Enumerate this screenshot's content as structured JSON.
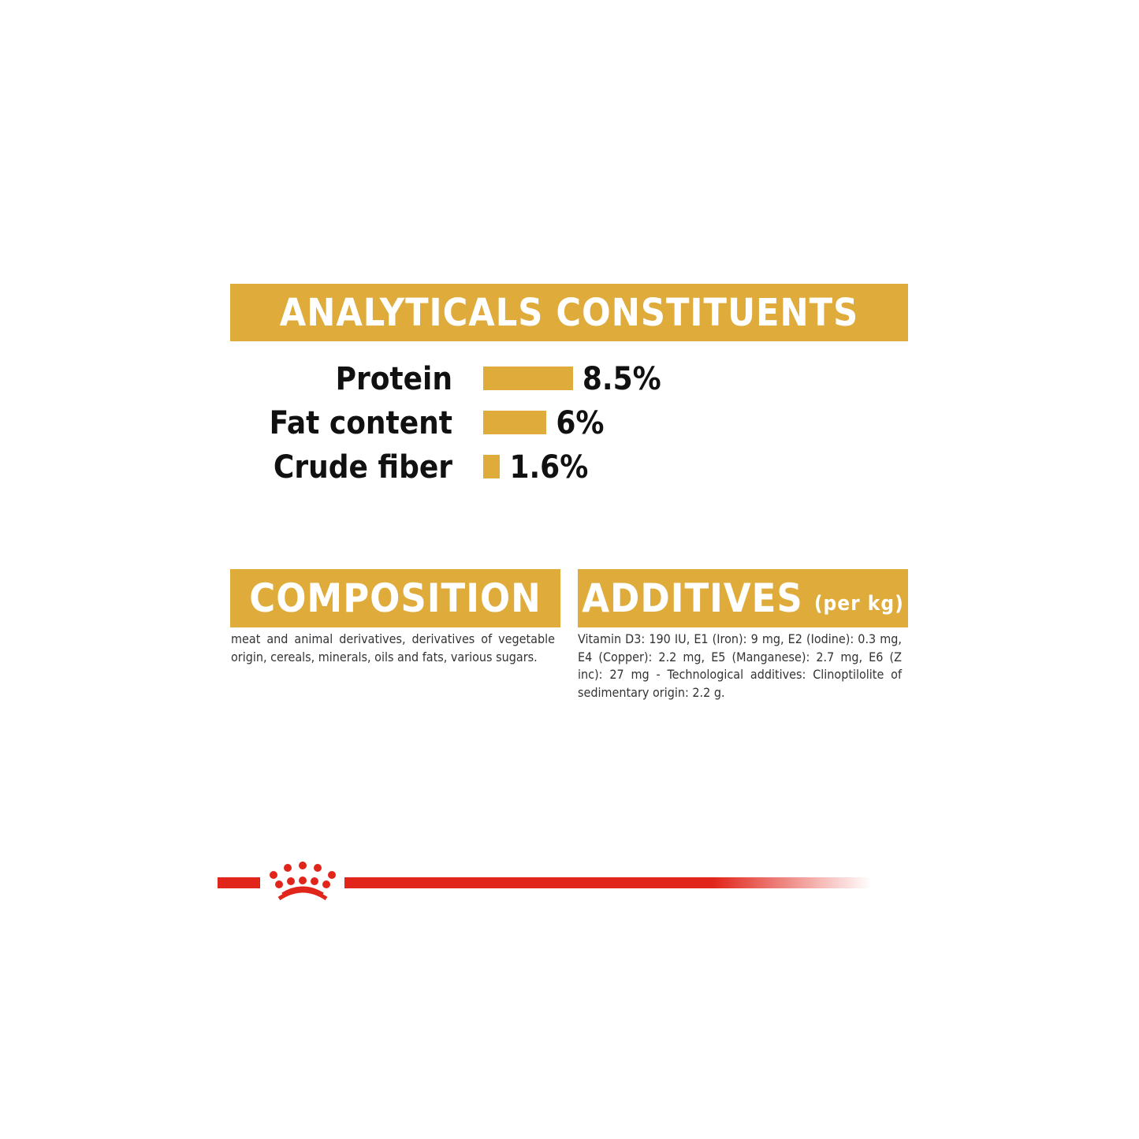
{
  "analyticals": {
    "title": "ANALYTICALS CONSTITUENTS",
    "items": [
      {
        "label": "Protein",
        "value": "8.5%",
        "percent": 8.5
      },
      {
        "label": "Fat content",
        "value": "6%",
        "percent": 6
      },
      {
        "label": "Crude fiber",
        "value": "1.6%",
        "percent": 1.6
      }
    ]
  },
  "composition": {
    "title": "COMPOSITION",
    "text": "meat and animal derivatives, derivatives of vegetable origin, cereals, minerals, oils and fats, various sugars."
  },
  "additives": {
    "title": "ADDITIVES",
    "subtitle": "(per kg)",
    "text": "Vitamin D3: 190 IU, E1 (Iron): 9 mg, E2 (Iodine): 0.3 mg, E4 (Copper): 2.2 mg, E5 (Manganese): 2.7 mg, E6 (Z inc): 27 mg - Technological additives: Clinoptilolite of sedimentary origin: 2.2 g."
  },
  "logo": {
    "name": "royal-canin-crown",
    "color": "#e1251b"
  },
  "colors": {
    "accent": "#dfac3c",
    "brand_red": "#e1251b"
  }
}
